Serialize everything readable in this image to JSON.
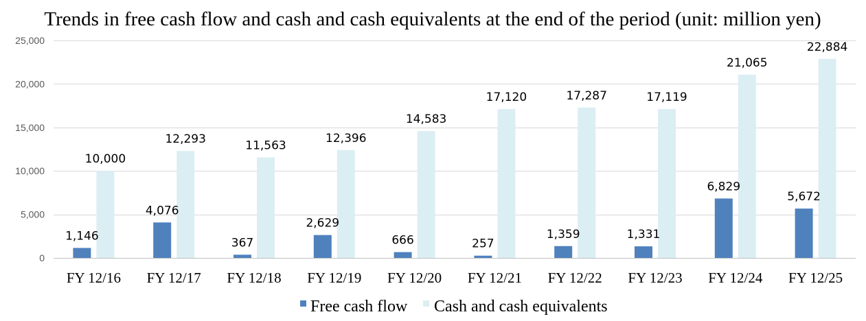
{
  "chart_data": {
    "type": "bar",
    "title": "Trends in free cash flow and cash and cash equivalents at the end of the period (unit: million yen)",
    "categories": [
      "FY 12/16",
      "FY 12/17",
      "FY 12/18",
      "FY 12/19",
      "FY 12/20",
      "FY 12/21",
      "FY 12/22",
      "FY 12/23",
      "FY 12/24",
      "FY 12/25"
    ],
    "series": [
      {
        "name": "Free cash flow",
        "color": "#4f81bd",
        "values": [
          1146,
          4076,
          367,
          2629,
          666,
          257,
          1359,
          1331,
          6829,
          5672
        ],
        "labels": [
          "1,146",
          "4,076",
          "367",
          "2,629",
          "666",
          "257",
          "1,359",
          "1,331",
          "6,829",
          "5,672"
        ]
      },
      {
        "name": "Cash and cash equivalents",
        "color": "#dbeef4",
        "values": [
          10000,
          12293,
          11563,
          12396,
          14583,
          17120,
          17287,
          17119,
          21065,
          22884
        ],
        "labels": [
          "10,000",
          "12,293",
          "11,563",
          "12,396",
          "14,583",
          "17,120",
          "17,287",
          "17,119",
          "21,065",
          "22,884"
        ]
      }
    ],
    "ylim": [
      0,
      25000
    ],
    "yticks": [
      0,
      5000,
      10000,
      15000,
      20000,
      25000
    ],
    "ytick_labels": [
      "0",
      "5,000",
      "10,000",
      "15,000",
      "20,000",
      "25,000"
    ],
    "grid": true,
    "legend": "bottom"
  }
}
